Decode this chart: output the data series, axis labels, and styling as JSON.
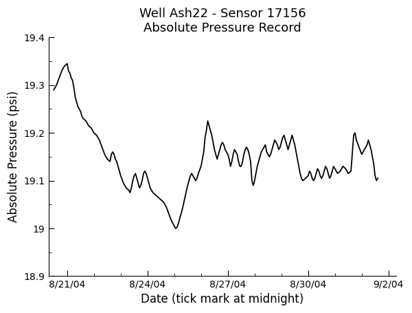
{
  "title_line1": "Well Ash22 - Sensor 17156",
  "title_line2": "Absolute Pressure Record",
  "xlabel": "Date (tick mark at midnight)",
  "ylabel": "Absolute Pressure (psi)",
  "ylim": [
    18.9,
    19.4
  ],
  "yticks": [
    18.9,
    19.0,
    19.1,
    19.2,
    19.3,
    19.4
  ],
  "line_color": "#000000",
  "background_color": "#ffffff",
  "title_fontsize": 13,
  "label_fontsize": 12,
  "tick_fontsize": 10,
  "line_width": 1.3,
  "x_tick_positions": [
    1,
    4,
    7,
    10,
    13
  ],
  "x_tick_dates": [
    "8/21/04",
    "8/24/04",
    "8/27/04",
    "8/30/04",
    "9/2/04"
  ],
  "xlim": [
    0.3,
    13.3
  ],
  "data_points": [
    [
      0.5,
      19.29
    ],
    [
      0.6,
      19.3
    ],
    [
      0.7,
      19.315
    ],
    [
      0.8,
      19.33
    ],
    [
      0.9,
      19.34
    ],
    [
      1.0,
      19.345
    ],
    [
      1.05,
      19.33
    ],
    [
      1.1,
      19.325
    ],
    [
      1.15,
      19.315
    ],
    [
      1.2,
      19.31
    ],
    [
      1.25,
      19.295
    ],
    [
      1.3,
      19.275
    ],
    [
      1.35,
      19.265
    ],
    [
      1.4,
      19.255
    ],
    [
      1.5,
      19.245
    ],
    [
      1.55,
      19.235
    ],
    [
      1.6,
      19.23
    ],
    [
      1.7,
      19.225
    ],
    [
      1.75,
      19.22
    ],
    [
      1.8,
      19.215
    ],
    [
      1.9,
      19.21
    ],
    [
      2.0,
      19.2
    ],
    [
      2.1,
      19.195
    ],
    [
      2.2,
      19.185
    ],
    [
      2.3,
      19.17
    ],
    [
      2.4,
      19.155
    ],
    [
      2.5,
      19.145
    ],
    [
      2.6,
      19.14
    ],
    [
      2.65,
      19.155
    ],
    [
      2.7,
      19.16
    ],
    [
      2.75,
      19.155
    ],
    [
      2.8,
      19.145
    ],
    [
      2.85,
      19.14
    ],
    [
      2.9,
      19.13
    ],
    [
      3.0,
      19.11
    ],
    [
      3.1,
      19.095
    ],
    [
      3.2,
      19.085
    ],
    [
      3.3,
      19.08
    ],
    [
      3.35,
      19.075
    ],
    [
      3.4,
      19.085
    ],
    [
      3.45,
      19.1
    ],
    [
      3.5,
      19.11
    ],
    [
      3.55,
      19.115
    ],
    [
      3.6,
      19.105
    ],
    [
      3.65,
      19.095
    ],
    [
      3.7,
      19.085
    ],
    [
      3.75,
      19.09
    ],
    [
      3.8,
      19.1
    ],
    [
      3.85,
      19.115
    ],
    [
      3.9,
      19.12
    ],
    [
      3.95,
      19.115
    ],
    [
      4.0,
      19.105
    ],
    [
      4.05,
      19.095
    ],
    [
      4.1,
      19.085
    ],
    [
      4.15,
      19.08
    ],
    [
      4.2,
      19.075
    ],
    [
      4.3,
      19.07
    ],
    [
      4.4,
      19.065
    ],
    [
      4.5,
      19.06
    ],
    [
      4.6,
      19.055
    ],
    [
      4.7,
      19.045
    ],
    [
      4.8,
      19.03
    ],
    [
      4.9,
      19.015
    ],
    [
      5.0,
      19.005
    ],
    [
      5.05,
      19.0
    ],
    [
      5.1,
      19.002
    ],
    [
      5.15,
      19.01
    ],
    [
      5.2,
      19.02
    ],
    [
      5.3,
      19.04
    ],
    [
      5.4,
      19.065
    ],
    [
      5.5,
      19.09
    ],
    [
      5.6,
      19.11
    ],
    [
      5.65,
      19.115
    ],
    [
      5.7,
      19.11
    ],
    [
      5.75,
      19.105
    ],
    [
      5.8,
      19.1
    ],
    [
      5.85,
      19.105
    ],
    [
      5.9,
      19.115
    ],
    [
      6.0,
      19.13
    ],
    [
      6.1,
      19.16
    ],
    [
      6.15,
      19.19
    ],
    [
      6.2,
      19.205
    ],
    [
      6.25,
      19.225
    ],
    [
      6.3,
      19.215
    ],
    [
      6.35,
      19.205
    ],
    [
      6.4,
      19.195
    ],
    [
      6.45,
      19.18
    ],
    [
      6.5,
      19.165
    ],
    [
      6.55,
      19.155
    ],
    [
      6.6,
      19.145
    ],
    [
      6.65,
      19.155
    ],
    [
      6.7,
      19.165
    ],
    [
      6.75,
      19.175
    ],
    [
      6.8,
      19.18
    ],
    [
      6.85,
      19.175
    ],
    [
      6.9,
      19.165
    ],
    [
      7.0,
      19.155
    ],
    [
      7.05,
      19.145
    ],
    [
      7.1,
      19.13
    ],
    [
      7.15,
      19.14
    ],
    [
      7.2,
      19.155
    ],
    [
      7.25,
      19.165
    ],
    [
      7.3,
      19.16
    ],
    [
      7.35,
      19.155
    ],
    [
      7.4,
      19.14
    ],
    [
      7.45,
      19.13
    ],
    [
      7.5,
      19.13
    ],
    [
      7.55,
      19.14
    ],
    [
      7.6,
      19.155
    ],
    [
      7.65,
      19.165
    ],
    [
      7.7,
      19.17
    ],
    [
      7.75,
      19.165
    ],
    [
      7.8,
      19.155
    ],
    [
      7.85,
      19.14
    ],
    [
      7.9,
      19.1
    ],
    [
      7.95,
      19.09
    ],
    [
      8.0,
      19.1
    ],
    [
      8.05,
      19.115
    ],
    [
      8.1,
      19.13
    ],
    [
      8.15,
      19.14
    ],
    [
      8.2,
      19.15
    ],
    [
      8.25,
      19.16
    ],
    [
      8.3,
      19.165
    ],
    [
      8.35,
      19.17
    ],
    [
      8.4,
      19.175
    ],
    [
      8.45,
      19.16
    ],
    [
      8.5,
      19.155
    ],
    [
      8.55,
      19.15
    ],
    [
      8.6,
      19.155
    ],
    [
      8.65,
      19.165
    ],
    [
      8.7,
      19.175
    ],
    [
      8.75,
      19.185
    ],
    [
      8.8,
      19.18
    ],
    [
      8.85,
      19.175
    ],
    [
      8.9,
      19.165
    ],
    [
      8.95,
      19.17
    ],
    [
      9.0,
      19.18
    ],
    [
      9.05,
      19.19
    ],
    [
      9.1,
      19.195
    ],
    [
      9.15,
      19.185
    ],
    [
      9.2,
      19.175
    ],
    [
      9.25,
      19.165
    ],
    [
      9.3,
      19.175
    ],
    [
      9.35,
      19.185
    ],
    [
      9.4,
      19.195
    ],
    [
      9.45,
      19.185
    ],
    [
      9.5,
      19.175
    ],
    [
      9.55,
      19.16
    ],
    [
      9.6,
      19.145
    ],
    [
      9.65,
      19.13
    ],
    [
      9.7,
      19.115
    ],
    [
      9.75,
      19.105
    ],
    [
      9.8,
      19.1
    ],
    [
      9.9,
      19.105
    ],
    [
      10.0,
      19.11
    ],
    [
      10.05,
      19.12
    ],
    [
      10.1,
      19.115
    ],
    [
      10.15,
      19.105
    ],
    [
      10.2,
      19.1
    ],
    [
      10.25,
      19.105
    ],
    [
      10.3,
      19.115
    ],
    [
      10.35,
      19.125
    ],
    [
      10.4,
      19.12
    ],
    [
      10.45,
      19.11
    ],
    [
      10.5,
      19.105
    ],
    [
      10.55,
      19.11
    ],
    [
      10.6,
      19.12
    ],
    [
      10.65,
      19.13
    ],
    [
      10.7,
      19.125
    ],
    [
      10.75,
      19.115
    ],
    [
      10.8,
      19.105
    ],
    [
      10.85,
      19.11
    ],
    [
      10.9,
      19.12
    ],
    [
      10.95,
      19.13
    ],
    [
      11.0,
      19.125
    ],
    [
      11.1,
      19.115
    ],
    [
      11.2,
      19.12
    ],
    [
      11.3,
      19.13
    ],
    [
      11.4,
      19.125
    ],
    [
      11.5,
      19.115
    ],
    [
      11.6,
      19.12
    ],
    [
      11.7,
      19.195
    ],
    [
      11.75,
      19.2
    ],
    [
      11.8,
      19.185
    ],
    [
      11.9,
      19.17
    ],
    [
      12.0,
      19.155
    ],
    [
      12.1,
      19.165
    ],
    [
      12.2,
      19.175
    ],
    [
      12.25,
      19.185
    ],
    [
      12.3,
      19.175
    ],
    [
      12.35,
      19.165
    ],
    [
      12.4,
      19.15
    ],
    [
      12.45,
      19.135
    ],
    [
      12.5,
      19.11
    ],
    [
      12.55,
      19.1
    ],
    [
      12.6,
      19.105
    ]
  ]
}
